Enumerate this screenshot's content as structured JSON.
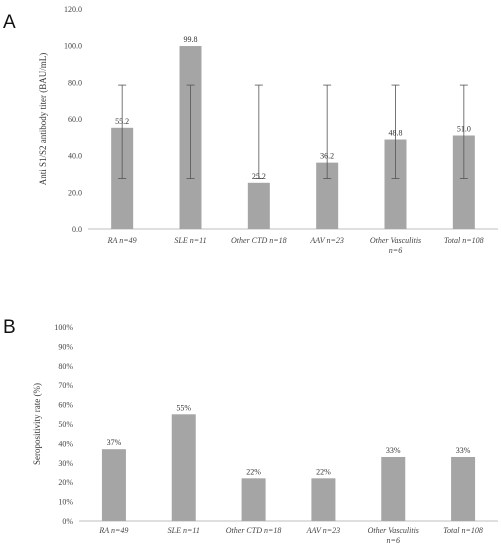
{
  "panels": {
    "a": "A",
    "b": "B"
  },
  "colors": {
    "bar": "#a5a5a5",
    "axis": "#bfbfbf",
    "error": "#555555",
    "text": "#444444"
  },
  "chart_data": [
    {
      "type": "bar",
      "panel": "A",
      "ylabel": "Anti S1/S2 antibody titer (BAU/mL)",
      "xlabel": "",
      "ylim": [
        0,
        120
      ],
      "yticks": [
        "0.0",
        "20.0",
        "40.0",
        "60.0",
        "80.0",
        "100.0",
        "120.0"
      ],
      "categories": [
        [
          "RA n=49"
        ],
        [
          "SLE n=11"
        ],
        [
          "Other CTD n=18"
        ],
        [
          "AAV n=23"
        ],
        [
          "Other Vasculitis",
          "n=6"
        ],
        [
          "Total n=108"
        ]
      ],
      "values": [
        55.2,
        99.8,
        25.2,
        36.2,
        48.8,
        51.0
      ],
      "data_labels": [
        "55.2",
        "99.8",
        "25.2",
        "36.2",
        "48.8",
        "51.0"
      ],
      "error_range": [
        27.5,
        78.5
      ],
      "grid": false
    },
    {
      "type": "bar",
      "panel": "B",
      "ylabel": "Seropositivity rate (%)",
      "xlabel": "",
      "ylim": [
        0,
        100
      ],
      "yticks": [
        "0%",
        "10%",
        "20%",
        "30%",
        "40%",
        "50%",
        "60%",
        "70%",
        "80%",
        "90%",
        "100%"
      ],
      "categories": [
        [
          "RA n=49"
        ],
        [
          "SLE n=11"
        ],
        [
          "Other CTD n=18"
        ],
        [
          "AAV n=23"
        ],
        [
          "Other Vasculitis",
          "n=6"
        ],
        [
          "Total n=108"
        ]
      ],
      "values": [
        37,
        55,
        22,
        22,
        33,
        33
      ],
      "data_labels": [
        "37%",
        "55%",
        "22%",
        "22%",
        "33%",
        "33%"
      ],
      "grid": false
    }
  ]
}
